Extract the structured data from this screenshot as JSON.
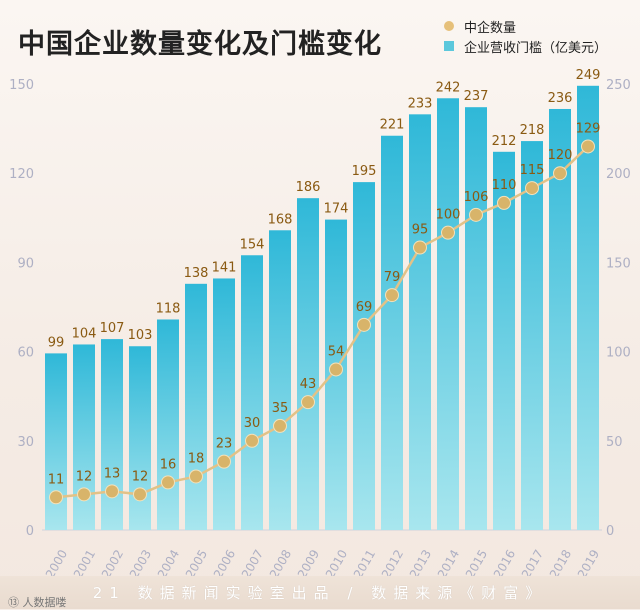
{
  "title": "中国企业数量变化及门槛变化",
  "legend": {
    "dot_label": "中企数量",
    "bar_label": "企业营收门槛（亿美元）"
  },
  "footer_text": "21 数据新闻实验室出品 / 数据来源《财富》",
  "watermark": "⑬ 人数据喽",
  "colors": {
    "bar": "#5cc8dc",
    "line": "#e2c287",
    "dot": "#d8b46a",
    "label": "#8a5a12",
    "axis_text": "#aeb0c4"
  },
  "chart_data": {
    "type": "bar",
    "categories": [
      "2000",
      "2001",
      "2002",
      "2003",
      "2004",
      "2005",
      "2006",
      "2007",
      "2008",
      "2009",
      "2010",
      "2011",
      "2012",
      "2013",
      "2014",
      "2015",
      "2016",
      "2017",
      "2018",
      "2019"
    ],
    "series": [
      {
        "name": "企业营收门槛（亿美元）",
        "axis": "right",
        "type": "bar",
        "values": [
          99,
          104,
          107,
          103,
          118,
          138,
          141,
          154,
          168,
          186,
          174,
          195,
          221,
          233,
          242,
          237,
          212,
          218,
          236,
          249
        ]
      },
      {
        "name": "中企数量",
        "axis": "left",
        "type": "line",
        "values": [
          11,
          12,
          13,
          12,
          16,
          18,
          23,
          30,
          35,
          43,
          54,
          69,
          79,
          95,
          100,
          106,
          110,
          115,
          120,
          129
        ]
      }
    ],
    "left_axis": {
      "ylim": [
        0,
        150
      ],
      "ticks": [
        "0",
        "30",
        "60",
        "90",
        "120",
        "150"
      ]
    },
    "right_axis": {
      "ylim": [
        0,
        250
      ],
      "ticks": [
        "0",
        "50",
        "100",
        "150",
        "200",
        "250"
      ]
    },
    "title": "中国企业数量变化及门槛变化"
  }
}
